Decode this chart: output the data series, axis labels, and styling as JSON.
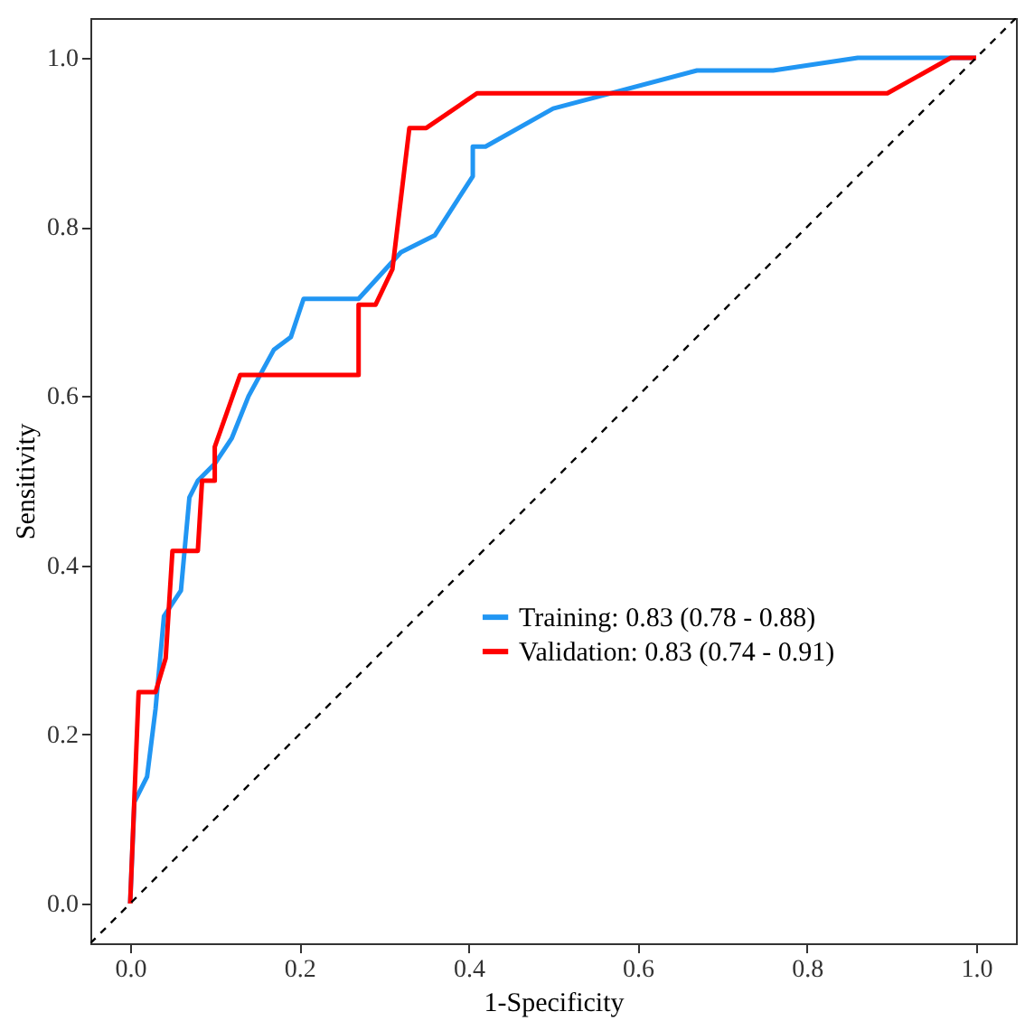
{
  "chart_data": {
    "type": "line",
    "xlabel": "1-Specificity",
    "ylabel": "Sensitivity",
    "xlim": [
      -0.047,
      1.047
    ],
    "ylim": [
      -0.047,
      1.047
    ],
    "xticks": [
      {
        "value": 0,
        "label": "0.0"
      },
      {
        "value": 0.2,
        "label": "0.2"
      },
      {
        "value": 0.4,
        "label": "0.4"
      },
      {
        "value": 0.6,
        "label": "0.6"
      },
      {
        "value": 0.8,
        "label": "0.8"
      },
      {
        "value": 1,
        "label": "1.0"
      }
    ],
    "yticks": [
      {
        "value": 0,
        "label": "0.0"
      },
      {
        "value": 0.2,
        "label": "0.2"
      },
      {
        "value": 0.4,
        "label": "0.4"
      },
      {
        "value": 0.6,
        "label": "0.6"
      },
      {
        "value": 0.8,
        "label": "0.8"
      },
      {
        "value": 1,
        "label": "1.0"
      }
    ],
    "grid": false,
    "legend": "bottom right",
    "line_style": "solid",
    "series": [
      {
        "name": "Training: 0.83 (0.78 - 0.88)",
        "color": "#2196f3",
        "x": [
          0,
          0.005,
          0.02,
          0.03,
          0.04,
          0.06,
          0.07,
          0.08,
          0.1,
          0.12,
          0.14,
          0.17,
          0.19,
          0.2,
          0.205,
          0.27,
          0.32,
          0.36,
          0.405,
          0.405,
          0.42,
          0.5,
          0.67,
          0.76,
          0.86,
          1.0
        ],
        "values": [
          0,
          0.12,
          0.15,
          0.23,
          0.34,
          0.37,
          0.48,
          0.5,
          0.52,
          0.55,
          0.6,
          0.655,
          0.67,
          0.7,
          0.715,
          0.715,
          0.77,
          0.79,
          0.86,
          0.895,
          0.895,
          0.94,
          0.985,
          0.985,
          1.0,
          1.0
        ]
      },
      {
        "name": "Validation: 0.83 (0.74 - 0.91)",
        "color": "#ff0000",
        "x": [
          0,
          0.01,
          0.03,
          0.042,
          0.05,
          0.08,
          0.085,
          0.1,
          0.1,
          0.13,
          0.27,
          0.27,
          0.29,
          0.31,
          0.33,
          0.35,
          0.41,
          0.895,
          0.97,
          1.0
        ],
        "values": [
          0,
          0.25,
          0.25,
          0.29,
          0.417,
          0.417,
          0.5,
          0.5,
          0.54,
          0.625,
          0.625,
          0.708,
          0.708,
          0.75,
          0.917,
          0.917,
          0.958,
          0.958,
          1.0,
          1.0
        ]
      },
      {
        "color": "#000000",
        "line_style": "dashed",
        "x": [
          -0.047,
          1.047
        ],
        "values": [
          -0.047,
          1.047
        ]
      }
    ]
  }
}
